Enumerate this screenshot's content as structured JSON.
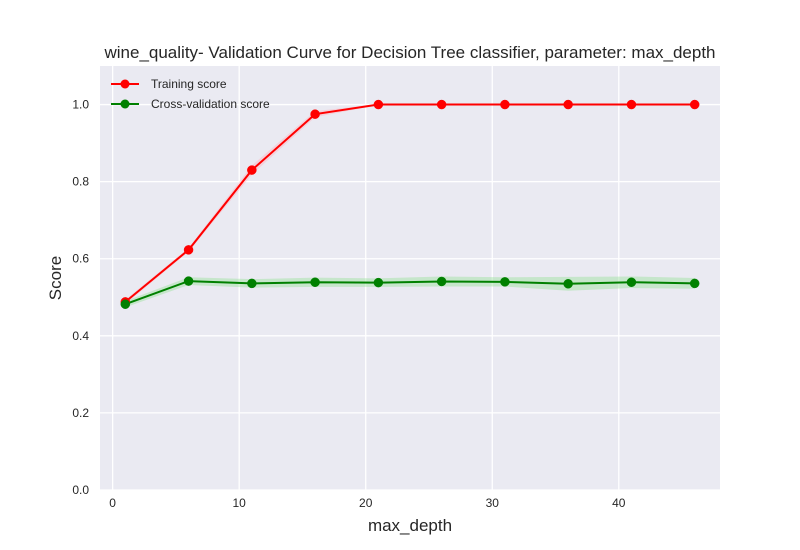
{
  "chart_data": {
    "type": "line",
    "title": "wine_quality- Validation Curve for Decision Tree classifier, parameter: max_depth",
    "xlabel": "max_depth",
    "ylabel": "Score",
    "xlim": [
      -1,
      48
    ],
    "ylim": [
      0.0,
      1.1
    ],
    "xticks": [
      0,
      10,
      20,
      30,
      40
    ],
    "xtick_labels": [
      "0",
      "10",
      "20",
      "30",
      "40"
    ],
    "yticks": [
      0.0,
      0.2,
      0.4,
      0.6,
      0.8,
      1.0
    ],
    "ytick_labels": [
      "0.0",
      "0.2",
      "0.4",
      "0.6",
      "0.8",
      "1.0"
    ],
    "grid": true,
    "legend_position": "top-left",
    "x": [
      1,
      6,
      11,
      16,
      21,
      26,
      31,
      36,
      41,
      46
    ],
    "series": [
      {
        "name": "Training score",
        "color": "#ff0000",
        "band_color": "#ffb6c1",
        "values": [
          0.488,
          0.623,
          0.83,
          0.975,
          1.0,
          1.0,
          1.0,
          1.0,
          1.0,
          1.0
        ],
        "band_half_width": [
          0.006,
          0.005,
          0.012,
          0.008,
          0.001,
          0.001,
          0.001,
          0.001,
          0.001,
          0.001
        ]
      },
      {
        "name": "Cross-validation score",
        "color": "#008000",
        "band_color": "#9be39b",
        "values": [
          0.482,
          0.542,
          0.536,
          0.539,
          0.538,
          0.541,
          0.54,
          0.535,
          0.539,
          0.536
        ],
        "band_half_width": [
          0.008,
          0.01,
          0.011,
          0.012,
          0.011,
          0.013,
          0.012,
          0.018,
          0.015,
          0.014
        ]
      }
    ]
  }
}
